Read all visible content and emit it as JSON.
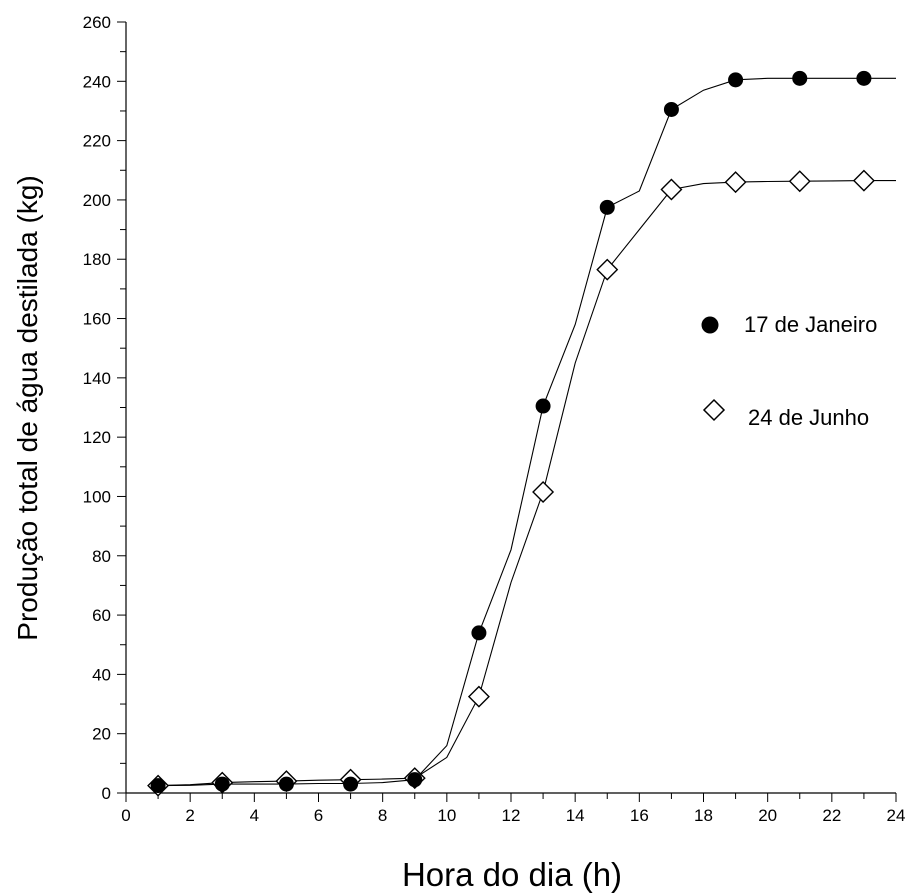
{
  "chart_data": {
    "type": "scatter",
    "xlabel": "Hora do dia (h)",
    "ylabel": "Produção total de água destilada (kg)",
    "xlim": [
      0,
      24
    ],
    "ylim": [
      0,
      260
    ],
    "x_ticks": [
      "0",
      "2",
      "4",
      "6",
      "8",
      "10",
      "12",
      "14",
      "16",
      "18",
      "20",
      "22",
      "24"
    ],
    "y_ticks": [
      "0",
      "20",
      "40",
      "60",
      "80",
      "100",
      "120",
      "140",
      "160",
      "180",
      "200",
      "220",
      "240",
      "260"
    ],
    "legend_position": "right",
    "series": [
      {
        "name": "17 de Janeiro",
        "marker": "filled-circle",
        "color": "#000000",
        "points": [
          {
            "x": 1,
            "y": 2.5
          },
          {
            "x": 3,
            "y": 3
          },
          {
            "x": 5,
            "y": 3
          },
          {
            "x": 7,
            "y": 3
          },
          {
            "x": 9,
            "y": 4.5
          },
          {
            "x": 11,
            "y": 54
          },
          {
            "x": 13,
            "y": 130.5
          },
          {
            "x": 15,
            "y": 197.5
          },
          {
            "x": 17,
            "y": 230.5
          },
          {
            "x": 19,
            "y": 240.5
          },
          {
            "x": 21,
            "y": 241
          },
          {
            "x": 23,
            "y": 241
          }
        ],
        "curve": [
          [
            1,
            2.5
          ],
          [
            2,
            2.6
          ],
          [
            3,
            3
          ],
          [
            4,
            3
          ],
          [
            5,
            3
          ],
          [
            6,
            3.2
          ],
          [
            7,
            3.2
          ],
          [
            8,
            3.5
          ],
          [
            9,
            4.5
          ],
          [
            10,
            16
          ],
          [
            11,
            54
          ],
          [
            12,
            82
          ],
          [
            13,
            130.5
          ],
          [
            14,
            158
          ],
          [
            15,
            197.5
          ],
          [
            16,
            203
          ],
          [
            17,
            230.5
          ],
          [
            18,
            237
          ],
          [
            19,
            240.5
          ],
          [
            20,
            241
          ],
          [
            21,
            241
          ],
          [
            22,
            241
          ],
          [
            23,
            241
          ],
          [
            24,
            241
          ]
        ]
      },
      {
        "name": "24 de Junho",
        "marker": "open-diamond",
        "color": "#000000",
        "points": [
          {
            "x": 1,
            "y": 2.5
          },
          {
            "x": 3,
            "y": 3.5
          },
          {
            "x": 5,
            "y": 4
          },
          {
            "x": 7,
            "y": 4.5
          },
          {
            "x": 9,
            "y": 5
          },
          {
            "x": 11,
            "y": 32.5
          },
          {
            "x": 13,
            "y": 101.5
          },
          {
            "x": 15,
            "y": 176.5
          },
          {
            "x": 17,
            "y": 203.5
          },
          {
            "x": 19,
            "y": 206
          },
          {
            "x": 21,
            "y": 206.3
          },
          {
            "x": 23,
            "y": 206.5
          }
        ],
        "curve": [
          [
            1,
            2.5
          ],
          [
            2,
            2.8
          ],
          [
            3,
            3.5
          ],
          [
            4,
            3.8
          ],
          [
            5,
            4
          ],
          [
            6,
            4.3
          ],
          [
            7,
            4.5
          ],
          [
            8,
            4.7
          ],
          [
            9,
            5
          ],
          [
            10,
            12
          ],
          [
            11,
            32.5
          ],
          [
            12,
            71
          ],
          [
            13,
            101.5
          ],
          [
            14,
            145
          ],
          [
            15,
            176.5
          ],
          [
            16,
            190
          ],
          [
            17,
            203.5
          ],
          [
            18,
            205.5
          ],
          [
            19,
            206
          ],
          [
            20,
            206.2
          ],
          [
            21,
            206.3
          ],
          [
            22,
            206.4
          ],
          [
            23,
            206.5
          ],
          [
            24,
            206.5
          ]
        ]
      }
    ]
  }
}
